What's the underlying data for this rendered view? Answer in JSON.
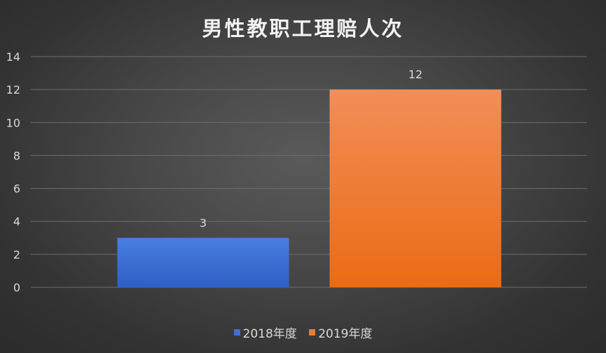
{
  "chart_data": {
    "type": "bar",
    "title": "男性教职工理赔人次",
    "categories": [
      ""
    ],
    "series": [
      {
        "name": "2018年度",
        "values": [
          3
        ],
        "color": "#3f6fd1"
      },
      {
        "name": "2019年度",
        "values": [
          12
        ],
        "color": "#f07a2c"
      }
    ],
    "ylim": [
      0,
      14
    ],
    "yticks": [
      "0",
      "2",
      "4",
      "6",
      "8",
      "10",
      "12",
      "14"
    ],
    "grid": true,
    "legend": "bottom",
    "data_labels": [
      "3",
      "12"
    ]
  }
}
